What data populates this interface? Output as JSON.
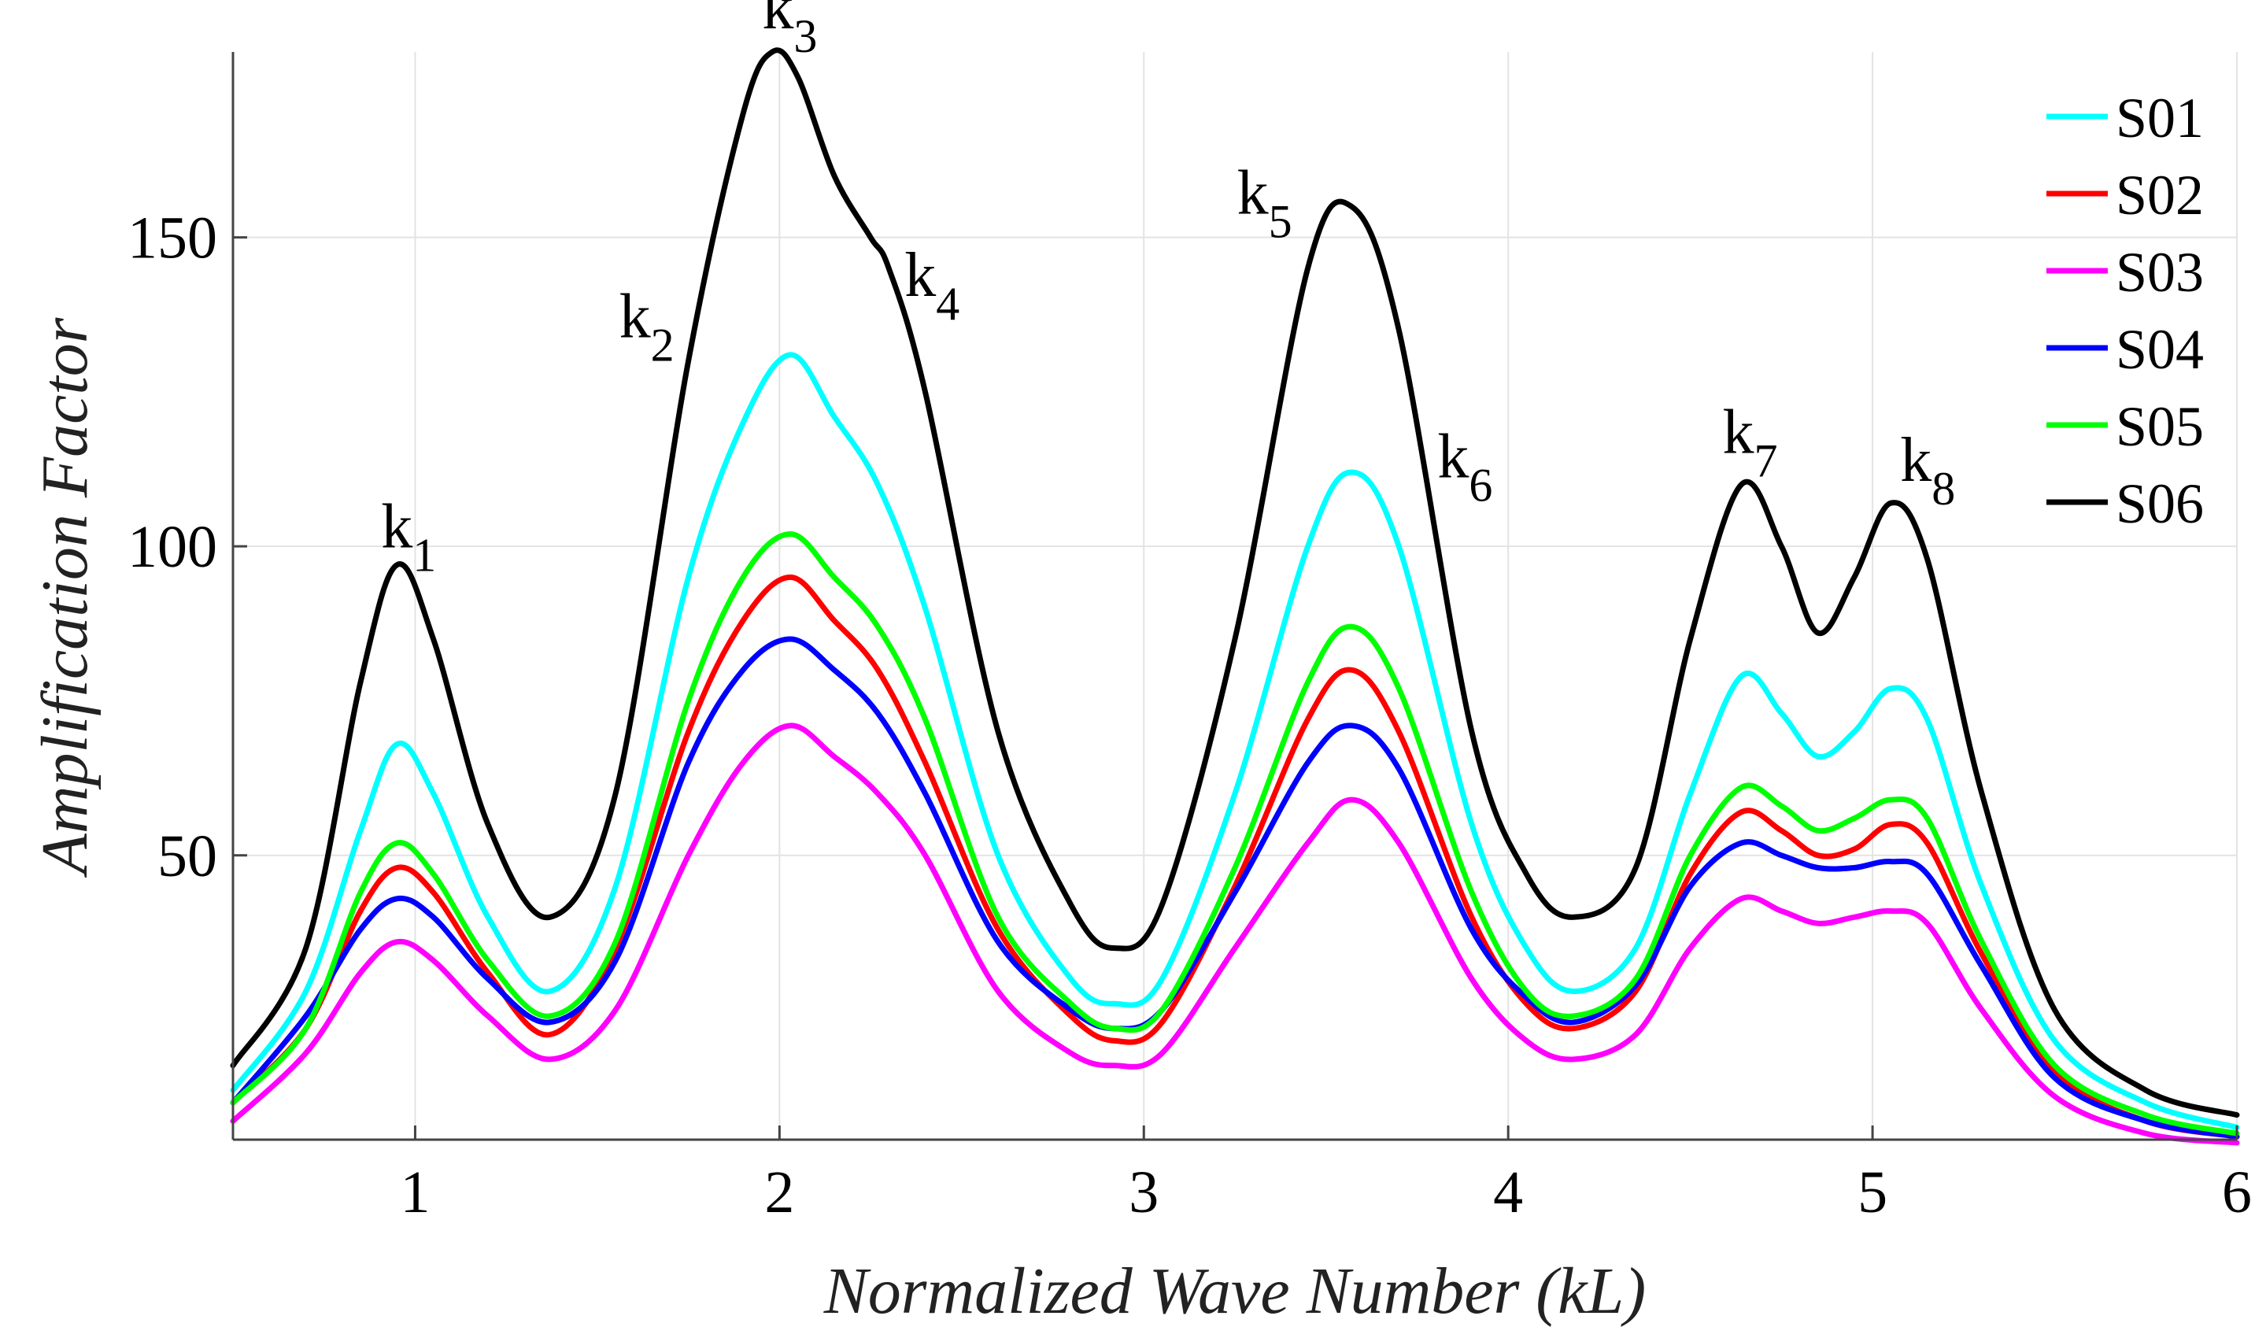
{
  "chart_data": {
    "type": "line",
    "title": "",
    "xlabel": "Normalized Wave Number (kL)",
    "ylabel": "Amplification Factor",
    "xlim": [
      0.5,
      6
    ],
    "ylim": [
      4,
      180
    ],
    "xticks": [
      1,
      2,
      3,
      4,
      5,
      6
    ],
    "yticks": [
      50,
      100,
      150
    ],
    "grid": true,
    "legend_position": "top-right",
    "series": [
      {
        "name": "S01",
        "color": "#00ffff",
        "x": [
          0.5,
          0.7,
          0.85,
          0.95,
          1.05,
          1.2,
          1.37,
          1.55,
          1.75,
          1.9,
          2.03,
          2.15,
          2.27,
          2.4,
          2.6,
          2.8,
          2.92,
          3.05,
          3.25,
          3.45,
          3.57,
          3.7,
          3.9,
          4.05,
          4.18,
          4.35,
          4.5,
          4.64,
          4.75,
          4.85,
          4.95,
          5.05,
          5.15,
          5.3,
          5.5,
          5.75,
          6.0
        ],
        "y": [
          12,
          28,
          54,
          68,
          60,
          40,
          28,
          45,
          95,
          120,
          131,
          121,
          110,
          90,
          50,
          30,
          26,
          30,
          60,
          100,
          112,
          100,
          55,
          35,
          28,
          35,
          60,
          79,
          73,
          66,
          70,
          77,
          72,
          45,
          20,
          10,
          6
        ]
      },
      {
        "name": "S02",
        "color": "#ff0000",
        "x": [
          0.5,
          0.7,
          0.85,
          0.95,
          1.05,
          1.2,
          1.37,
          1.55,
          1.75,
          1.9,
          2.03,
          2.15,
          2.27,
          2.4,
          2.6,
          2.8,
          2.92,
          3.05,
          3.25,
          3.45,
          3.57,
          3.7,
          3.9,
          4.05,
          4.18,
          4.35,
          4.5,
          4.64,
          4.75,
          4.85,
          4.95,
          5.05,
          5.15,
          5.3,
          5.5,
          5.75,
          6.0
        ],
        "y": [
          10,
          22,
          41,
          48,
          44,
          31,
          21,
          35,
          70,
          88,
          95,
          88,
          80,
          65,
          38,
          24,
          20,
          23,
          45,
          72,
          80,
          70,
          40,
          26,
          22,
          28,
          47,
          57,
          54,
          50,
          51,
          55,
          52,
          34,
          15,
          7,
          4.5
        ]
      },
      {
        "name": "S03",
        "color": "#ff00ff",
        "x": [
          0.5,
          0.7,
          0.85,
          0.95,
          1.05,
          1.2,
          1.37,
          1.55,
          1.75,
          1.9,
          2.03,
          2.15,
          2.27,
          2.4,
          2.6,
          2.8,
          2.92,
          3.05,
          3.25,
          3.45,
          3.57,
          3.7,
          3.9,
          4.05,
          4.18,
          4.35,
          4.5,
          4.64,
          4.75,
          4.85,
          4.95,
          5.05,
          5.15,
          5.3,
          5.5,
          5.75,
          6.0
        ],
        "y": [
          7,
          18,
          31,
          36,
          33,
          24,
          17,
          25,
          50,
          65,
          71,
          66,
          60,
          50,
          28,
          18,
          16,
          18,
          35,
          52,
          59,
          52,
          30,
          20,
          17,
          21,
          35,
          43,
          41,
          39,
          40,
          41,
          39,
          25,
          11,
          5,
          3.5
        ]
      },
      {
        "name": "S04",
        "color": "#0000ff",
        "x": [
          0.5,
          0.7,
          0.85,
          0.95,
          1.05,
          1.2,
          1.37,
          1.55,
          1.75,
          1.9,
          2.03,
          2.15,
          2.27,
          2.4,
          2.6,
          2.8,
          2.92,
          3.05,
          3.25,
          3.45,
          3.57,
          3.7,
          3.9,
          4.05,
          4.18,
          4.35,
          4.5,
          4.64,
          4.75,
          4.85,
          4.95,
          5.05,
          5.15,
          5.3,
          5.5,
          5.75,
          6.0
        ],
        "y": [
          10,
          24,
          38,
          43,
          40,
          30,
          23,
          33,
          65,
          80,
          85,
          80,
          73,
          60,
          36,
          25,
          22,
          25,
          44,
          65,
          71,
          64,
          38,
          27,
          23,
          29,
          45,
          52,
          50,
          48,
          48,
          49,
          47,
          32,
          14,
          7,
          4.5
        ]
      },
      {
        "name": "S05",
        "color": "#00ff00",
        "x": [
          0.5,
          0.7,
          0.85,
          0.95,
          1.05,
          1.2,
          1.37,
          1.55,
          1.75,
          1.9,
          2.03,
          2.15,
          2.27,
          2.4,
          2.6,
          2.8,
          2.92,
          3.05,
          3.25,
          3.45,
          3.57,
          3.7,
          3.9,
          4.05,
          4.18,
          4.35,
          4.5,
          4.64,
          4.75,
          4.85,
          4.95,
          5.05,
          5.15,
          5.3,
          5.5,
          5.75,
          6.0
        ],
        "y": [
          10,
          22,
          44,
          52,
          47,
          33,
          24,
          36,
          75,
          95,
          102,
          95,
          87,
          72,
          40,
          26,
          22,
          25,
          48,
          78,
          87,
          77,
          44,
          28,
          24,
          30,
          50,
          61,
          58,
          54,
          56,
          59,
          56,
          36,
          16,
          8,
          5
        ]
      },
      {
        "name": "S06",
        "color": "#000000",
        "x": [
          0.5,
          0.7,
          0.85,
          0.95,
          1.05,
          1.2,
          1.37,
          1.55,
          1.75,
          1.9,
          1.98,
          2.05,
          2.15,
          2.25,
          2.3,
          2.4,
          2.6,
          2.8,
          2.92,
          3.05,
          3.25,
          3.45,
          3.57,
          3.7,
          3.9,
          4.05,
          4.18,
          4.35,
          4.5,
          4.64,
          4.75,
          4.85,
          4.95,
          5.05,
          5.15,
          5.3,
          5.5,
          5.75,
          6.0
        ],
        "y": [
          16,
          35,
          78,
          97,
          85,
          55,
          40,
          60,
          130,
          170,
          180,
          176,
          160,
          150,
          145,
          125,
          70,
          42,
          35,
          42,
          85,
          145,
          155,
          135,
          70,
          47,
          40,
          48,
          85,
          110,
          100,
          86,
          95,
          107,
          98,
          60,
          25,
          12,
          8
        ]
      }
    ],
    "annotations": [
      {
        "base": "k",
        "sub": "1",
        "x": 0.95,
        "y": 97
      },
      {
        "base": "k",
        "sub": "2",
        "x": 1.75,
        "y": 130
      },
      {
        "base": "k",
        "sub": "3",
        "x": 2.0,
        "y": 180
      },
      {
        "base": "k",
        "sub": "4",
        "x": 2.3,
        "y": 145
      },
      {
        "base": "k",
        "sub": "5",
        "x": 3.45,
        "y": 150
      },
      {
        "base": "k",
        "sub": "6",
        "x": 3.78,
        "y": 115
      },
      {
        "base": "k",
        "sub": "7",
        "x": 4.64,
        "y": 110
      },
      {
        "base": "k",
        "sub": "8",
        "x": 5.05,
        "y": 107
      }
    ]
  }
}
